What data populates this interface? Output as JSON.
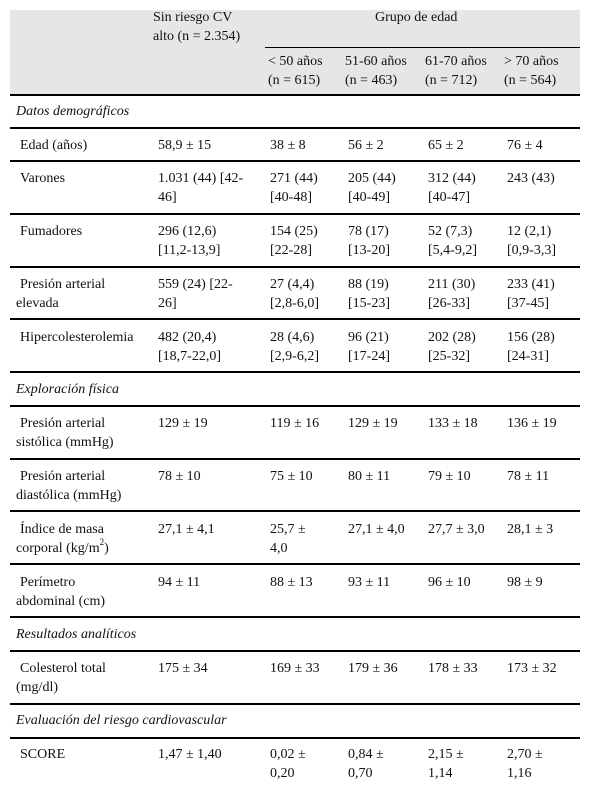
{
  "header": {
    "col1": [
      "Sin riesgo CV",
      "alto (n = 2.354)"
    ],
    "group": "Grupo de edad",
    "cols": [
      [
        "< 50 años",
        "(n = 615)"
      ],
      [
        "51-60 años",
        "(n = 463)"
      ],
      [
        "61-70 años",
        "(n = 712)"
      ],
      [
        "> 70 años",
        "(n = 564)"
      ]
    ]
  },
  "sections": {
    "demo": "Datos demográficos",
    "exp": "Exploración física",
    "lab": "Resultados analíticos",
    "risk": "Evaluación del riesgo cardiovascular"
  },
  "rows": [
    {
      "label": [
        "Edad (años)"
      ],
      "values": [
        [
          "58,9 ± 15"
        ],
        [
          "38 ± 8"
        ],
        [
          "56 ± 2"
        ],
        [
          "65 ± 2"
        ],
        [
          "76 ± 4"
        ]
      ]
    },
    {
      "label": [
        "Varones"
      ],
      "values": [
        [
          "1.031 (44) [42-",
          "46]"
        ],
        [
          "271 (44)",
          "[40-48]"
        ],
        [
          "205 (44)",
          "[40-49]"
        ],
        [
          "312 (44)",
          "[40-47]"
        ],
        [
          "243 (43)"
        ]
      ]
    },
    {
      "label": [
        "Fumadores"
      ],
      "values": [
        [
          "296 (12,6)",
          "[11,2-13,9]"
        ],
        [
          "154 (25)",
          "[22-28]"
        ],
        [
          "78 (17)",
          "[13-20]"
        ],
        [
          "52 (7,3)",
          "[5,4-9,2]"
        ],
        [
          "12 (2,1)",
          "[0,9-3,3]"
        ]
      ]
    },
    {
      "label": [
        "Presión arterial",
        "elevada"
      ],
      "values": [
        [
          "559 (24) [22-",
          "26]"
        ],
        [
          "27 (4,4)",
          "[2,8-6,0]"
        ],
        [
          "88 (19)",
          "[15-23]"
        ],
        [
          "211 (30)",
          "[26-33]"
        ],
        [
          "233 (41)",
          "[37-45]"
        ]
      ]
    },
    {
      "label": [
        "Hipercolesterolemia"
      ],
      "values": [
        [
          "482 (20,4)",
          "[18,7-22,0]"
        ],
        [
          "28 (4,6)",
          "[2,9-6,2]"
        ],
        [
          "96 (21)",
          "[17-24]"
        ],
        [
          "202 (28)",
          "[25-32]"
        ],
        [
          "156 (28)",
          "[24-31]"
        ]
      ]
    },
    {
      "label": [
        "Presión arterial",
        "sistólica (mmHg)"
      ],
      "values": [
        [
          "129 ± 19"
        ],
        [
          "119 ± 16"
        ],
        [
          "129 ± 19"
        ],
        [
          "133 ± 18"
        ],
        [
          "136 ± 19"
        ]
      ]
    },
    {
      "label": [
        "Presión arterial",
        "diastólica (mmHg)"
      ],
      "values": [
        [
          "78 ± 10"
        ],
        [
          "75 ± 10"
        ],
        [
          "80 ± 11"
        ],
        [
          "79 ± 10"
        ],
        [
          "78 ± 11"
        ]
      ]
    },
    {
      "label": [
        "Índice de masa",
        "corporal (kg/m",
        "2",
        ")"
      ],
      "values": [
        [
          "27,1 ± 4,1"
        ],
        [
          "25,7 ±",
          "4,0"
        ],
        [
          "27,1 ± 4,0"
        ],
        [
          "27,7 ± 3,0"
        ],
        [
          "28,1 ± 3"
        ]
      ]
    },
    {
      "label": [
        "Perímetro",
        "abdominal (cm)"
      ],
      "values": [
        [
          "94 ± 11"
        ],
        [
          "88 ± 13"
        ],
        [
          "93 ± 11"
        ],
        [
          "96 ± 10"
        ],
        [
          "98 ± 9"
        ]
      ]
    },
    {
      "label": [
        "Colesterol total",
        "(mg/dl)"
      ],
      "values": [
        [
          "175 ± 34"
        ],
        [
          "169 ± 33"
        ],
        [
          "179 ± 36"
        ],
        [
          "178 ± 33"
        ],
        [
          "173 ± 32"
        ]
      ]
    },
    {
      "label": [
        "SCORE"
      ],
      "values": [
        [
          "1,47 ± 1,40"
        ],
        [
          "0,02 ±",
          "0,20"
        ],
        [
          "0,84 ±",
          "0,70"
        ],
        [
          "2,15 ±",
          "1,14"
        ],
        [
          "2,70 ±",
          "1,16"
        ]
      ]
    }
  ]
}
